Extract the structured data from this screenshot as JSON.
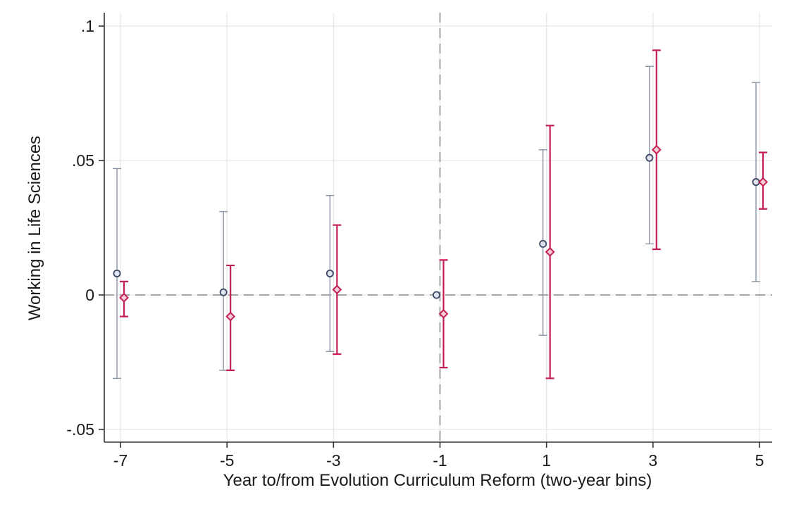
{
  "chart_data": {
    "type": "scatter",
    "subtype": "coefficient plot with confidence intervals",
    "title": "",
    "xlabel": "Year to/from Evolution Curriculum Reform (two-year bins)",
    "ylabel": "Working in Life Sciences",
    "x_ticks": [
      -7,
      -5,
      -3,
      -1,
      1,
      3,
      5
    ],
    "x_tick_labels": [
      "-7",
      "-5",
      "-3",
      "-1",
      "1",
      "3",
      "5"
    ],
    "y_ticks": [
      -0.05,
      0,
      0.05,
      0.1
    ],
    "y_tick_labels": [
      "-.05",
      "0",
      ".05",
      ".1"
    ],
    "xlim": [
      -7.2,
      5.1
    ],
    "ylim": [
      -0.055,
      0.105
    ],
    "grid": true,
    "reference_lines": {
      "horizontal_dashed_y": 0,
      "vertical_dashed_x": -1
    },
    "legend": "none",
    "series": [
      {
        "color": "#8a94a6",
        "marker_fill": "#dfe4ee",
        "marker_stroke": "#3d4a66",
        "marker": "circle",
        "x": [
          -7,
          -5,
          -3,
          -1,
          1,
          3,
          5
        ],
        "y": [
          0.008,
          0.001,
          0.008,
          0.0,
          0.019,
          0.051,
          0.042
        ],
        "ci_low": [
          -0.031,
          -0.028,
          -0.021,
          0.0,
          -0.015,
          0.019,
          0.005
        ],
        "ci_high": [
          0.047,
          0.031,
          0.037,
          0.0,
          0.054,
          0.085,
          0.079
        ]
      },
      {
        "color": "#c41e52",
        "marker_fill": "#f2cdd8",
        "marker_stroke": "#c41e52",
        "marker": "diamond",
        "x": [
          -7,
          -5,
          -3,
          -1,
          1,
          3,
          5
        ],
        "y": [
          -0.001,
          -0.008,
          0.002,
          -0.007,
          0.016,
          0.054,
          0.042
        ],
        "ci_low": [
          -0.008,
          -0.028,
          -0.022,
          -0.027,
          -0.031,
          0.017,
          0.032
        ],
        "ci_high": [
          0.005,
          0.011,
          0.026,
          0.013,
          0.063,
          0.091,
          0.053
        ]
      }
    ]
  }
}
